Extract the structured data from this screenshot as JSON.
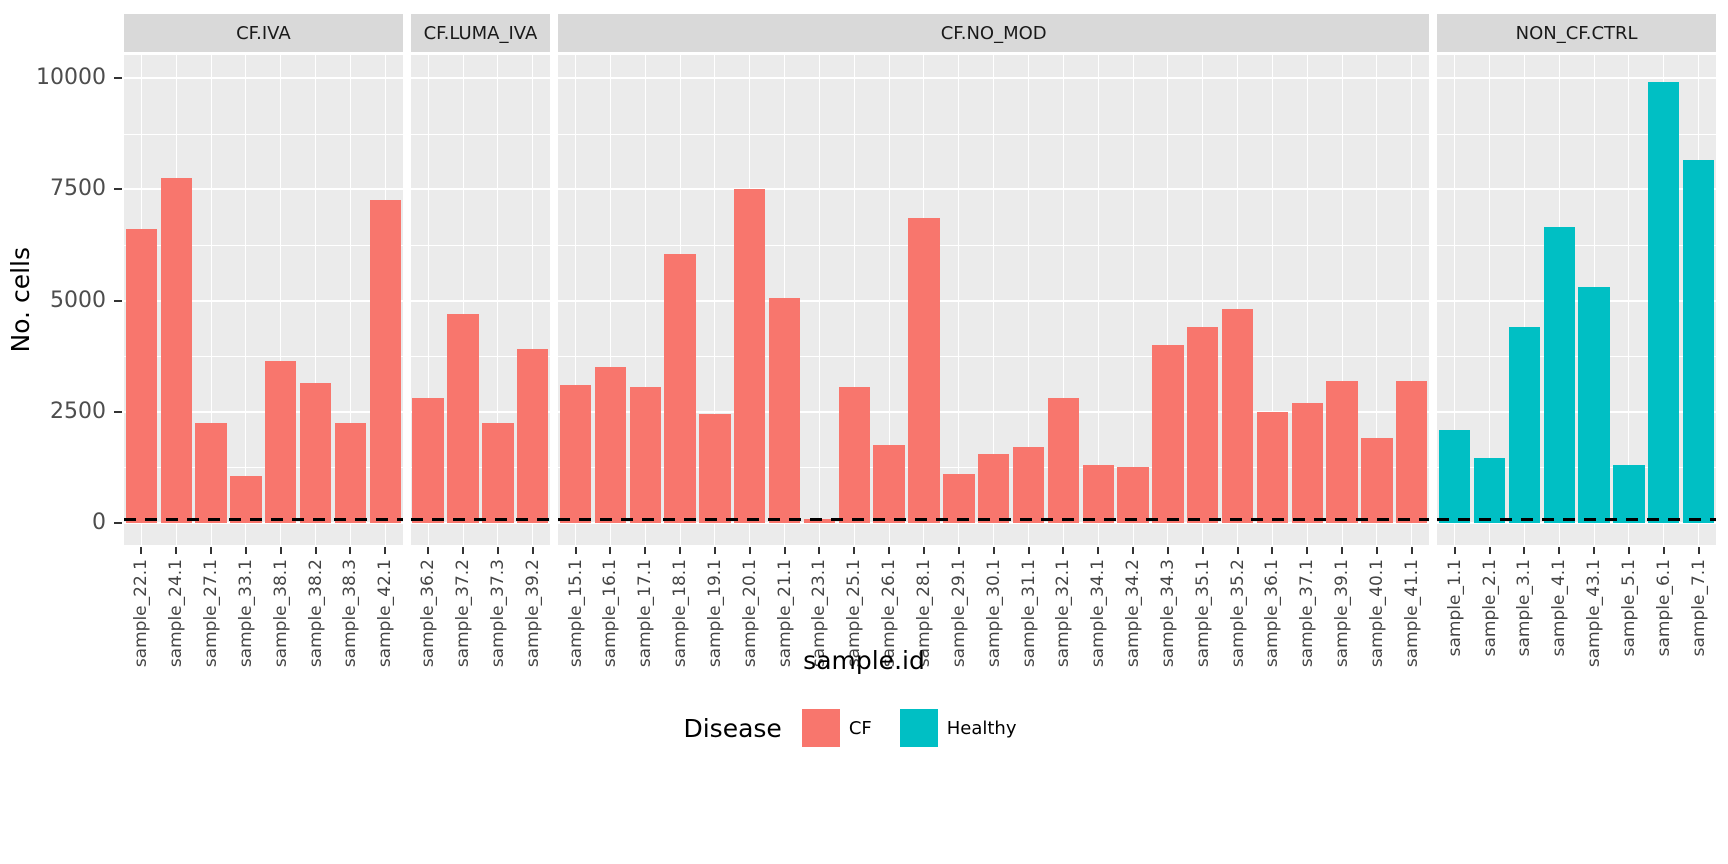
{
  "chart_data": {
    "type": "bar",
    "title": "",
    "ylabel": "No. cells",
    "xlabel": "sample.id",
    "ylim": [
      0,
      10000
    ],
    "y_ticks": [
      0,
      2500,
      5000,
      7500,
      10000
    ],
    "y_tick_labels": [
      "0",
      "2500",
      "5000",
      "7500",
      "10000"
    ],
    "y_minor_ticks": [
      1250,
      3750,
      6250,
      8750
    ],
    "grid": "white major and minor gridlines on gray panel",
    "panel_bg": "#EBEBEB",
    "strip_bg": "#D9D9D9",
    "reference_line": {
      "y": 100,
      "style": "dashed",
      "color": "#000000"
    },
    "legend": {
      "title": "Disease",
      "position": "bottom",
      "entries": [
        {
          "label": "CF",
          "color": "#F8766D"
        },
        {
          "label": "Healthy",
          "color": "#00BFC4"
        }
      ]
    },
    "facets": [
      {
        "label": "CF.IVA",
        "group": "CF",
        "color": "#F8766D",
        "samples": [
          "sample_22.1",
          "sample_24.1",
          "sample_27.1",
          "sample_33.1",
          "sample_38.1",
          "sample_38.2",
          "sample_38.3",
          "sample_42.1"
        ],
        "values": [
          6600,
          7750,
          2250,
          1050,
          3650,
          3150,
          2250,
          7250
        ]
      },
      {
        "label": "CF.LUMA_IVA",
        "group": "CF",
        "color": "#F8766D",
        "samples": [
          "sample_36.2",
          "sample_37.2",
          "sample_37.3",
          "sample_39.2"
        ],
        "values": [
          2800,
          4700,
          2250,
          3900
        ]
      },
      {
        "label": "CF.NO_MOD",
        "group": "CF",
        "color": "#F8766D",
        "samples": [
          "sample_15.1",
          "sample_16.1",
          "sample_17.1",
          "sample_18.1",
          "sample_19.1",
          "sample_20.1",
          "sample_21.1",
          "sample_23.1",
          "sample_25.1",
          "sample_26.1",
          "sample_28.1",
          "sample_29.1",
          "sample_30.1",
          "sample_31.1",
          "sample_32.1",
          "sample_34.1",
          "sample_34.2",
          "sample_34.3",
          "sample_35.1",
          "sample_35.2",
          "sample_36.1",
          "sample_37.1",
          "sample_39.1",
          "sample_40.1",
          "sample_41.1"
        ],
        "values": [
          3100,
          3500,
          3050,
          6050,
          2450,
          7500,
          5050,
          80,
          3050,
          1750,
          6850,
          1100,
          1550,
          1700,
          2800,
          1300,
          1250,
          4000,
          4400,
          4800,
          2500,
          2700,
          3200,
          1900,
          3200
        ]
      },
      {
        "label": "NON_CF.CTRL",
        "group": "Healthy",
        "color": "#00BFC4",
        "samples": [
          "sample_1.1",
          "sample_2.1",
          "sample_3.1",
          "sample_4.1",
          "sample_43.1",
          "sample_5.1",
          "sample_6.1",
          "sample_7.1"
        ],
        "values": [
          2100,
          1450,
          4400,
          6650,
          5300,
          1300,
          9900,
          8150
        ]
      }
    ]
  }
}
